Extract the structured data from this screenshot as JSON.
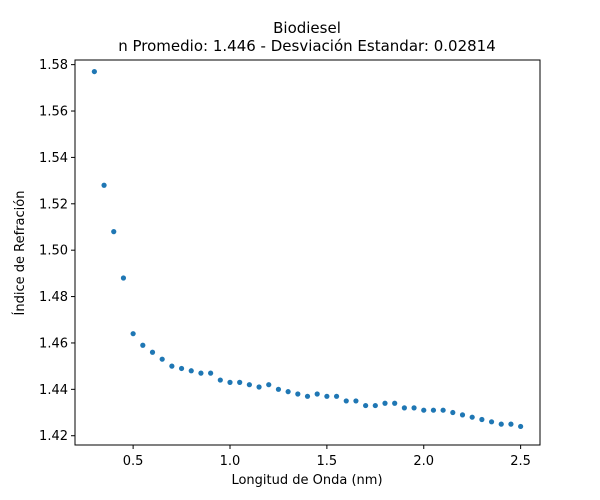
{
  "chart_data": {
    "type": "scatter",
    "title": "Biodiesel",
    "subtitle": "n Promedio: 1.446 - Desviación Estandar: 0.02814",
    "xlabel": "Longitud de Onda (nm)",
    "ylabel": "Índice de Refración",
    "xlim": [
      0.2,
      2.6
    ],
    "ylim": [
      1.416,
      1.582
    ],
    "x_ticks": [
      0.5,
      1.0,
      1.5,
      2.0,
      2.5
    ],
    "x_tick_labels": [
      "0.5",
      "1.0",
      "1.5",
      "2.0",
      "2.5"
    ],
    "y_ticks": [
      1.42,
      1.44,
      1.46,
      1.48,
      1.5,
      1.52,
      1.54,
      1.56,
      1.58
    ],
    "y_tick_labels": [
      "1.42",
      "1.44",
      "1.46",
      "1.48",
      "1.50",
      "1.52",
      "1.54",
      "1.56",
      "1.58"
    ],
    "grid": false,
    "marker_color": "#1f77b4",
    "series": [
      {
        "x": [
          0.3,
          0.35,
          0.4,
          0.45,
          0.5,
          0.55,
          0.6,
          0.65,
          0.7,
          0.75,
          0.8,
          0.85,
          0.9,
          0.95,
          1.0,
          1.05,
          1.1,
          1.15,
          1.2,
          1.25,
          1.3,
          1.35,
          1.4,
          1.45,
          1.5,
          1.55,
          1.6,
          1.65,
          1.7,
          1.75,
          1.8,
          1.85,
          1.9,
          1.95,
          2.0,
          2.05,
          2.1,
          2.15,
          2.2,
          2.25,
          2.3,
          2.35,
          2.4,
          2.45,
          2.5
        ],
        "y": [
          1.577,
          1.528,
          1.508,
          1.488,
          1.464,
          1.459,
          1.456,
          1.453,
          1.45,
          1.449,
          1.448,
          1.447,
          1.447,
          1.444,
          1.443,
          1.443,
          1.442,
          1.441,
          1.442,
          1.44,
          1.439,
          1.438,
          1.437,
          1.438,
          1.437,
          1.437,
          1.435,
          1.435,
          1.433,
          1.433,
          1.434,
          1.434,
          1.432,
          1.432,
          1.431,
          1.431,
          1.431,
          1.43,
          1.429,
          1.428,
          1.427,
          1.426,
          1.425,
          1.425,
          1.424
        ]
      }
    ]
  }
}
